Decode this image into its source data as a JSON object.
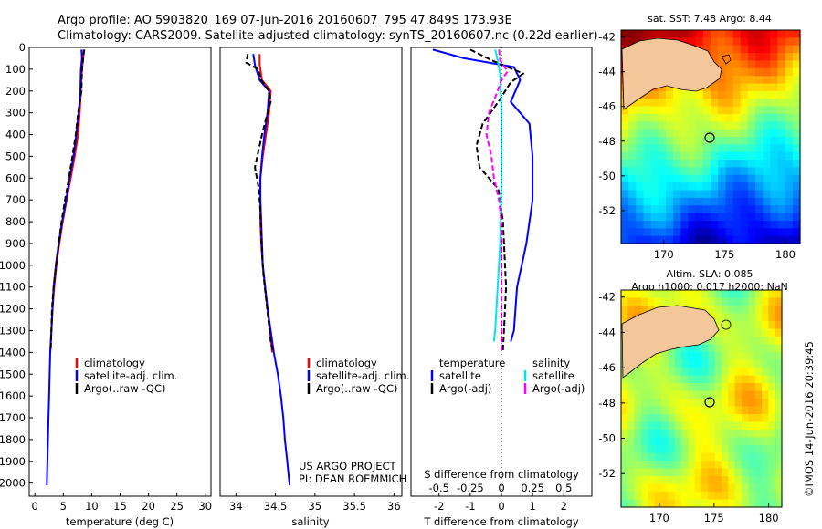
{
  "title": {
    "line1": "Argo profile: AO 5903820_169 07-Jun-2016 20160607_795 47.849S 173.93E",
    "line2": "Climatology: CARS2009. Satellite-adjusted climatology: synTS_20160607.nc (0.22d earlier)"
  },
  "colors": {
    "climatology": "#ff0000",
    "satellite": "#0000ff",
    "argo": "#000000",
    "sal_satellite": "#00e5ee",
    "sal_argo": "#ff00ff",
    "land": "#f4c79a",
    "circle": "#000000"
  },
  "depth_axis": {
    "ticks": [
      "0",
      "100",
      "200",
      "300",
      "400",
      "500",
      "600",
      "700",
      "800",
      "900",
      "1000",
      "1100",
      "1200",
      "1300",
      "1400",
      "1500",
      "1600",
      "1700",
      "1800",
      "1900",
      "2000"
    ],
    "range": [
      0,
      2060
    ]
  },
  "legend": {
    "climatology": "climatology",
    "satellite_adj": "satellite-adj. clim.",
    "argo_raw": "Argo(..raw -QC)"
  },
  "diff_legend": {
    "temperature_header": "temperature",
    "salinity_header": "salinity",
    "satellite": "satellite",
    "argo_adj": "Argo(-adj)"
  },
  "credits": {
    "line1": "US ARGO PROJECT",
    "line2": "PI: DEAN ROEMMICH"
  },
  "timestamp": "©IMOS 14-Jun-2016 20:39:45",
  "maps": {
    "sst": {
      "title": "sat. SST: 7.48  Argo: 8.44",
      "lon_ticks": [
        "170",
        "175",
        "180"
      ],
      "lat_ticks": [
        "-42",
        "-44",
        "-46",
        "-48",
        "-50",
        "-52"
      ],
      "argo_lon": 173.93,
      "argo_lat": -47.849
    },
    "sla": {
      "title1": "Altim. SLA: 0.085",
      "title2": "Argo h1000: 0.017 h2000: NaN",
      "lon_ticks": [
        "170",
        "175",
        "180"
      ],
      "lat_ticks": [
        "-42",
        "-44",
        "-46",
        "-48",
        "-50",
        "-52"
      ],
      "argo_lon": 173.93,
      "argo_lat": -47.849
    }
  },
  "chart_data": [
    {
      "type": "line",
      "xlabel": "temperature (deg C)",
      "ylabel": "",
      "xlim": [
        -1,
        31
      ],
      "ylim": [
        2060,
        0
      ],
      "x_ticks": [
        "0",
        "5",
        "10",
        "15",
        "20",
        "25",
        "30"
      ],
      "series": [
        {
          "name": "climatology",
          "color": "#ff0000",
          "points": [
            [
              8.6,
              10
            ],
            [
              8.5,
              50
            ],
            [
              8.3,
              100
            ],
            [
              8.1,
              200
            ],
            [
              7.9,
              300
            ],
            [
              7.6,
              400
            ],
            [
              7.0,
              500
            ],
            [
              6.3,
              600
            ],
            [
              5.6,
              700
            ],
            [
              4.9,
              800
            ],
            [
              4.3,
              900
            ],
            [
              3.8,
              1000
            ],
            [
              3.4,
              1100
            ],
            [
              3.1,
              1200
            ],
            [
              2.9,
              1300
            ],
            [
              2.7,
              1400
            ]
          ]
        },
        {
          "name": "satellite-adj. clim.",
          "color": "#0000ff",
          "points": [
            [
              8.2,
              10
            ],
            [
              8.3,
              50
            ],
            [
              8.1,
              100
            ],
            [
              8.0,
              200
            ],
            [
              7.7,
              300
            ],
            [
              7.3,
              400
            ],
            [
              6.8,
              500
            ],
            [
              6.1,
              600
            ],
            [
              5.5,
              700
            ],
            [
              4.8,
              800
            ],
            [
              4.2,
              900
            ],
            [
              3.7,
              1000
            ],
            [
              3.3,
              1100
            ],
            [
              3.1,
              1200
            ],
            [
              2.9,
              1300
            ],
            [
              2.7,
              1400
            ],
            [
              2.6,
              1500
            ],
            [
              2.5,
              1600
            ],
            [
              2.4,
              1700
            ],
            [
              2.3,
              1800
            ],
            [
              2.2,
              1900
            ],
            [
              2.1,
              2010
            ]
          ]
        },
        {
          "name": "Argo(..raw -QC)",
          "color": "#000000",
          "dashed": true,
          "points": [
            [
              8.7,
              10
            ],
            [
              8.5,
              50
            ],
            [
              8.3,
              100
            ],
            [
              8.2,
              200
            ],
            [
              7.6,
              300
            ],
            [
              7.2,
              400
            ],
            [
              6.6,
              500
            ],
            [
              6.0,
              600
            ],
            [
              5.3,
              700
            ],
            [
              4.7,
              800
            ],
            [
              4.2,
              900
            ],
            [
              3.7,
              1000
            ],
            [
              3.3,
              1100
            ],
            [
              3.0,
              1200
            ],
            [
              2.9,
              1300
            ],
            [
              2.8,
              1390
            ]
          ]
        }
      ]
    },
    {
      "type": "line",
      "xlabel": "salinity",
      "ylabel": "",
      "xlim": [
        33.8,
        36.1
      ],
      "ylim": [
        2060,
        0
      ],
      "x_ticks": [
        "34",
        "34.5",
        "35",
        "35.5",
        "36"
      ],
      "series": [
        {
          "name": "climatology",
          "color": "#ff0000",
          "points": [
            [
              34.3,
              30
            ],
            [
              34.3,
              80
            ],
            [
              34.33,
              150
            ],
            [
              34.44,
              200
            ],
            [
              34.42,
              300
            ],
            [
              34.38,
              400
            ],
            [
              34.34,
              500
            ],
            [
              34.31,
              600
            ],
            [
              34.31,
              700
            ],
            [
              34.31,
              800
            ],
            [
              34.32,
              900
            ],
            [
              34.34,
              1000
            ],
            [
              34.37,
              1100
            ],
            [
              34.4,
              1200
            ],
            [
              34.43,
              1300
            ],
            [
              34.46,
              1400
            ]
          ]
        },
        {
          "name": "satellite-adj. clim.",
          "color": "#0000ff",
          "points": [
            [
              34.22,
              30
            ],
            [
              34.24,
              80
            ],
            [
              34.3,
              150
            ],
            [
              34.42,
              200
            ],
            [
              34.4,
              300
            ],
            [
              34.36,
              400
            ],
            [
              34.33,
              500
            ],
            [
              34.31,
              600
            ],
            [
              34.31,
              700
            ],
            [
              34.32,
              800
            ],
            [
              34.33,
              900
            ],
            [
              34.34,
              1000
            ],
            [
              34.37,
              1100
            ],
            [
              34.4,
              1200
            ],
            [
              34.44,
              1300
            ],
            [
              34.48,
              1400
            ],
            [
              34.53,
              1500
            ],
            [
              34.57,
              1600
            ],
            [
              34.6,
              1700
            ],
            [
              34.62,
              1800
            ],
            [
              34.65,
              1900
            ],
            [
              34.68,
              2010
            ]
          ]
        },
        {
          "name": "Argo(..raw -QC)",
          "color": "#000000",
          "dashed": true,
          "points": [
            [
              34.15,
              30
            ],
            [
              34.13,
              70
            ],
            [
              34.28,
              100
            ],
            [
              34.32,
              150
            ],
            [
              34.42,
              200
            ],
            [
              34.44,
              250
            ],
            [
              34.4,
              300
            ],
            [
              34.33,
              400
            ],
            [
              34.24,
              550
            ],
            [
              34.29,
              650
            ],
            [
              34.31,
              750
            ],
            [
              34.32,
              850
            ],
            [
              34.33,
              950
            ],
            [
              34.35,
              1050
            ],
            [
              34.38,
              1150
            ],
            [
              34.41,
              1250
            ],
            [
              34.44,
              1350
            ],
            [
              34.47,
              1400
            ]
          ]
        }
      ]
    },
    {
      "type": "line",
      "xlabel": "T difference from climatology",
      "x2label": "S difference from climatology",
      "xlim": [
        -2.9,
        2.9
      ],
      "x2lim": [
        -0.725,
        0.725
      ],
      "ylim": [
        2060,
        0
      ],
      "x_ticks": [
        "-2",
        "-1",
        "0",
        "1",
        "2"
      ],
      "x2_ticks": [
        "-0.5",
        "-0.25",
        "0",
        "0.25",
        "0.5"
      ],
      "series": [
        {
          "name": "temperature satellite",
          "color": "#0000ff",
          "axis": "T",
          "points": [
            [
              -2.2,
              10
            ],
            [
              -1.2,
              50
            ],
            [
              0.4,
              90
            ],
            [
              0.6,
              150
            ],
            [
              0.3,
              250
            ],
            [
              0.9,
              350
            ],
            [
              1.0,
              500
            ],
            [
              1.0,
              700
            ],
            [
              0.8,
              900
            ],
            [
              0.5,
              1100
            ],
            [
              0.4,
              1300
            ],
            [
              0.3,
              1350
            ]
          ]
        },
        {
          "name": "temperature Argo(-adj)",
          "color": "#000000",
          "dashed": true,
          "axis": "T",
          "points": [
            [
              -1.0,
              10
            ],
            [
              -0.3,
              60
            ],
            [
              0.7,
              120
            ],
            [
              0.3,
              160
            ],
            [
              -0.1,
              250
            ],
            [
              -0.6,
              350
            ],
            [
              -0.8,
              450
            ],
            [
              -0.7,
              550
            ],
            [
              -0.1,
              650
            ],
            [
              0.05,
              800
            ],
            [
              0.1,
              950
            ],
            [
              0.15,
              1100
            ],
            [
              0.1,
              1250
            ],
            [
              0.05,
              1390
            ]
          ]
        },
        {
          "name": "salinity satellite",
          "color": "#00e5ee",
          "axis": "S",
          "points": [
            [
              -0.05,
              10
            ],
            [
              -0.03,
              60
            ],
            [
              -0.01,
              120
            ],
            [
              0.0,
              300
            ],
            [
              0.0,
              600
            ],
            [
              -0.01,
              900
            ],
            [
              -0.03,
              1100
            ],
            [
              -0.05,
              1300
            ],
            [
              -0.06,
              1350
            ]
          ]
        },
        {
          "name": "salinity Argo(-adj)",
          "color": "#ff00ff",
          "dashed": true,
          "axis": "S",
          "points": [
            [
              -0.02,
              10
            ],
            [
              -0.01,
              60
            ],
            [
              0.05,
              110
            ],
            [
              0.0,
              150
            ],
            [
              -0.03,
              200
            ],
            [
              -0.1,
              300
            ],
            [
              -0.12,
              400
            ],
            [
              -0.08,
              500
            ],
            [
              -0.06,
              600
            ],
            [
              -0.02,
              700
            ],
            [
              0.0,
              800
            ],
            [
              0.0,
              950
            ],
            [
              0.0,
              1100
            ],
            [
              0.0,
              1250
            ],
            [
              0.0,
              1390
            ]
          ]
        }
      ]
    }
  ]
}
